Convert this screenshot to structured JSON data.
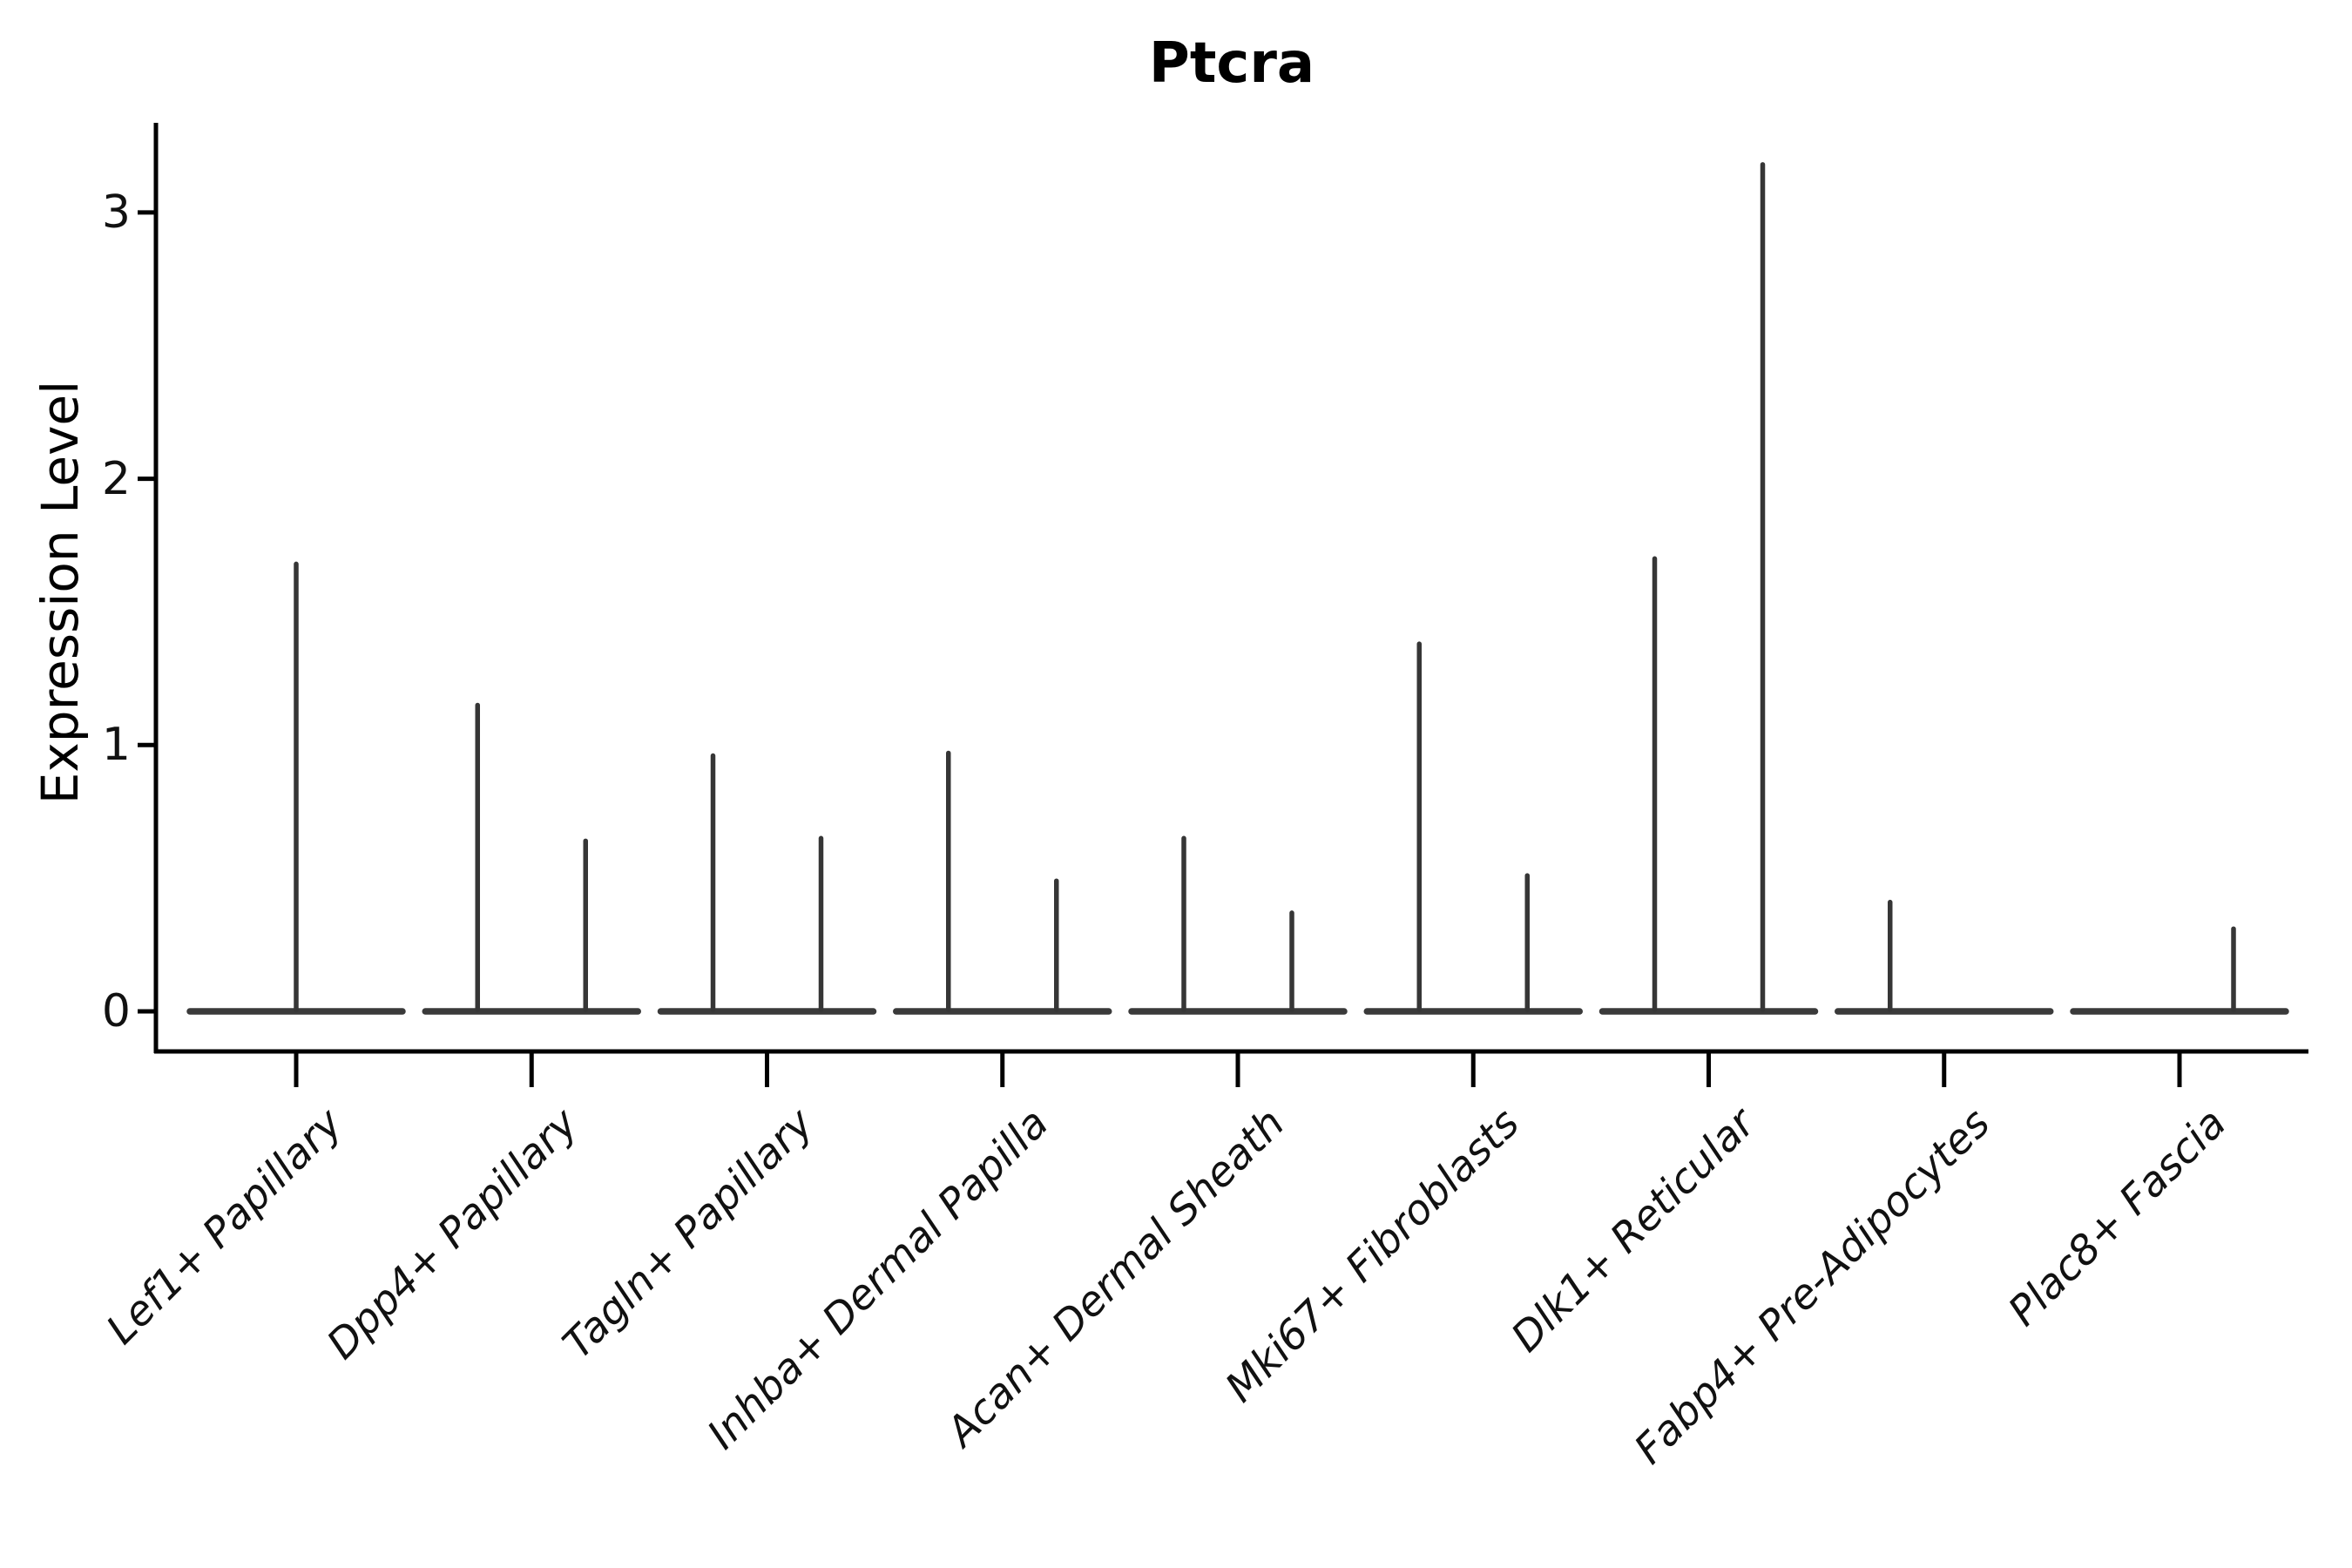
{
  "chart_data": {
    "type": "violin",
    "title": "Ptcra",
    "ylabel": "Expression Level",
    "xlabel": "",
    "ylim": [
      0,
      3.34
    ],
    "yticks": [
      "0",
      "1",
      "2",
      "3"
    ],
    "grid": false,
    "legend": "none",
    "style_note": "Violins are collapsed: a wide flat bar at expression 0 with one or two thin vertical density spikes per category; spikes sit at the center of each (half-)violin.",
    "categories": [
      "Lef1+ Papillary",
      "Dpp4+ Papillary",
      "Tagln+ Papillary",
      "Inhba+ Dermal Papilla",
      "Acan+ Dermal Sheath",
      "Mki67+ Fibroblasts",
      "Dlk1+ Reticular",
      "Fabp4+ Pre-Adipocytes",
      "Plac8+ Fascia"
    ],
    "series": [
      {
        "category": "Lef1+ Papillary",
        "baseline_value": 0,
        "spikes": [
          {
            "pos": "center",
            "max_expression": 1.68
          }
        ]
      },
      {
        "category": "Dpp4+ Papillary",
        "baseline_value": 0,
        "spikes": [
          {
            "pos": "left",
            "max_expression": 1.15
          },
          {
            "pos": "right",
            "max_expression": 0.64
          }
        ]
      },
      {
        "category": "Tagln+ Papillary",
        "baseline_value": 0,
        "spikes": [
          {
            "pos": "left",
            "max_expression": 0.96
          },
          {
            "pos": "right",
            "max_expression": 0.65
          }
        ]
      },
      {
        "category": "Inhba+ Dermal Papilla",
        "baseline_value": 0,
        "spikes": [
          {
            "pos": "left",
            "max_expression": 0.97
          },
          {
            "pos": "right",
            "max_expression": 0.49
          }
        ]
      },
      {
        "category": "Acan+ Dermal Sheath",
        "baseline_value": 0,
        "spikes": [
          {
            "pos": "left",
            "max_expression": 0.65
          },
          {
            "pos": "right",
            "max_expression": 0.37
          }
        ]
      },
      {
        "category": "Mki67+ Fibroblasts",
        "baseline_value": 0,
        "spikes": [
          {
            "pos": "left",
            "max_expression": 1.38
          },
          {
            "pos": "right",
            "max_expression": 0.51
          }
        ]
      },
      {
        "category": "Dlk1+ Reticular",
        "baseline_value": 0,
        "spikes": [
          {
            "pos": "left",
            "max_expression": 1.7
          },
          {
            "pos": "right",
            "max_expression": 3.18
          }
        ]
      },
      {
        "category": "Fabp4+ Pre-Adipocytes",
        "baseline_value": 0,
        "spikes": [
          {
            "pos": "left",
            "max_expression": 0.41
          }
        ]
      },
      {
        "category": "Plac8+ Fascia",
        "baseline_value": 0,
        "spikes": [
          {
            "pos": "right",
            "max_expression": 0.31
          }
        ]
      }
    ],
    "colors": {
      "violin_stroke": "#3a3a3a",
      "spike_stroke": "#363636",
      "axis_stroke": "#000000",
      "text": "#111111",
      "background": "#ffffff"
    }
  }
}
